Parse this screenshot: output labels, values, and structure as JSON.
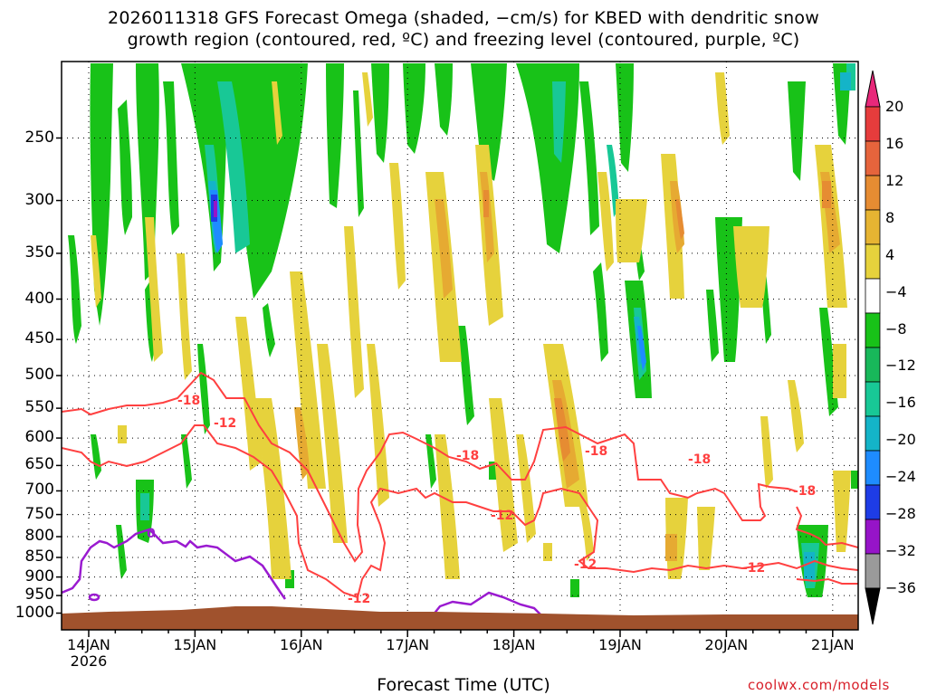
{
  "title_line1": "2026011318 GFS Forecast Omega (shaded, −cm/s) for KBED with dendritic snow",
  "title_line2": "growth region (contoured, red, ºC) and freezing level (contoured, purple, ºC)",
  "xaxis_title": "Forecast Time (UTC)",
  "credit": "coolwx.com/models",
  "colors": {
    "green": "#18c218",
    "green_dark": "#12b412",
    "teal": "#18c896",
    "cyan": "#14b4c8",
    "blue_light": "#1e8cff",
    "blue": "#1e3ce6",
    "purple": "#9614c8",
    "yellow": "#e6d23c",
    "orange_light": "#e6aa32",
    "orange": "#e68c32",
    "red": "#e63c3c",
    "contour_red": "#ff4040",
    "contour_purple": "#9a1ad0",
    "terrain": "#a0522d"
  },
  "chart_data": {
    "type": "heatmap",
    "title": "2026011318 GFS Forecast Omega (shaded, −cm/s) for KBED with dendritic snow growth region (contoured, red, ºC) and freezing level (contoured, purple, ºC)",
    "xlabel": "Forecast Time (UTC)",
    "ylabel": "",
    "x_ticks": [
      "14JAN\n2026",
      "15JAN",
      "16JAN",
      "17JAN",
      "18JAN",
      "19JAN",
      "20JAN",
      "21JAN"
    ],
    "y_ticks": [
      250,
      300,
      350,
      400,
      450,
      500,
      550,
      600,
      650,
      700,
      750,
      800,
      850,
      900,
      950,
      1000
    ],
    "colorbar": {
      "labels": [
        20,
        16,
        12,
        8,
        4,
        -4,
        -8,
        -12,
        -16,
        -20,
        -24,
        -28,
        -32,
        -36
      ],
      "colors": [
        "#e8287a",
        "#e63c3c",
        "#e6643c",
        "#e68c32",
        "#e6b432",
        "#e6d23c",
        "#ffffff",
        "#18c218",
        "#18b85a",
        "#18c896",
        "#14b4c8",
        "#1e8cff",
        "#1e3ce6",
        "#9614c8",
        "#9a9a9a",
        "#000000"
      ]
    },
    "contours": [
      {
        "name": "-18",
        "color": "red"
      },
      {
        "name": "-12",
        "color": "red"
      },
      {
        "name": "0",
        "color": "purple"
      }
    ],
    "grid": true
  }
}
